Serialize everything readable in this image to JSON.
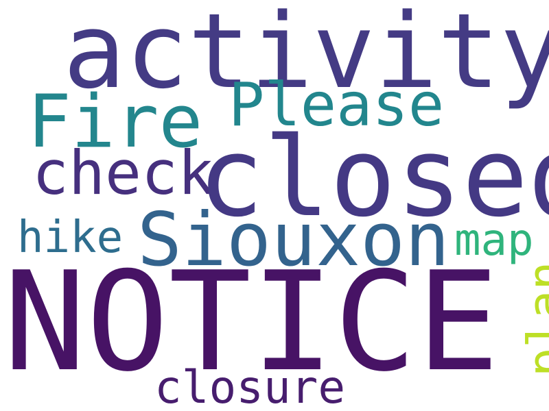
{
  "colors": {
    "background": "#ffffff"
  },
  "words": [
    {
      "id": "activity",
      "text": "activity",
      "color": "#443b84"
    },
    {
      "id": "fire",
      "text": "Fire",
      "color": "#23868d"
    },
    {
      "id": "please",
      "text": "Please",
      "color": "#22868d"
    },
    {
      "id": "check",
      "text": "check",
      "color": "#46307e"
    },
    {
      "id": "closed",
      "text": "closed",
      "color": "#443984"
    },
    {
      "id": "siouxon",
      "text": "Siouxon",
      "color": "#33638d"
    },
    {
      "id": "hike",
      "text": "hike",
      "color": "#2e6d8e"
    },
    {
      "id": "map",
      "text": "map",
      "color": "#2fb47c"
    },
    {
      "id": "notice",
      "text": "NOTICE",
      "color": "#471365"
    },
    {
      "id": "plan",
      "text": "plan",
      "color": "#bddf26"
    },
    {
      "id": "closure",
      "text": "closure",
      "color": "#471d6e"
    }
  ]
}
